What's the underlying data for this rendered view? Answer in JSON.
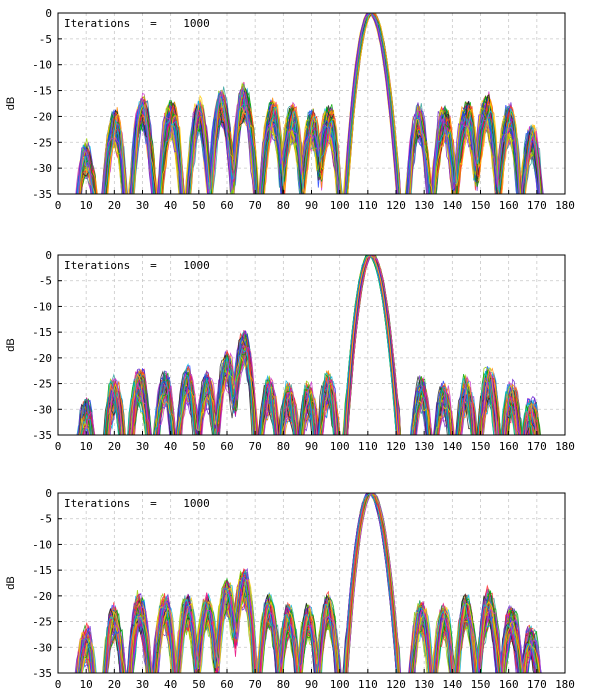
{
  "chart_data": [
    {
      "type": "line",
      "annotation": "Iterations   =    1000",
      "ylabel": "dB",
      "xlabel": "",
      "xlim": [
        0,
        180
      ],
      "ylim": [
        -35,
        0
      ],
      "xticks": [
        "0",
        "10",
        "20",
        "30",
        "40",
        "50",
        "60",
        "70",
        "80",
        "90",
        "100",
        "110",
        "120",
        "130",
        "140",
        "150",
        "160",
        "170",
        "180"
      ],
      "yticks": [
        "0",
        "-5",
        "-10",
        "-15",
        "-20",
        "-25",
        "-30",
        "-35"
      ],
      "grid": true,
      "series_count": 1000,
      "mainlobe_peak": {
        "x": 111,
        "y": 0
      },
      "mainlobe_null_left_x": 102,
      "mainlobe_null_right_x": 121,
      "sidelobes": [
        {
          "x": 10,
          "y": -27
        },
        {
          "x": 20,
          "y": -21
        },
        {
          "x": 30,
          "y": -18
        },
        {
          "x": 40,
          "y": -19
        },
        {
          "x": 50,
          "y": -19
        },
        {
          "x": 58,
          "y": -17
        },
        {
          "x": 66,
          "y": -16
        },
        {
          "x": 76,
          "y": -19
        },
        {
          "x": 83,
          "y": -20
        },
        {
          "x": 90,
          "y": -21
        },
        {
          "x": 96,
          "y": -20
        },
        {
          "x": 128,
          "y": -20
        },
        {
          "x": 137,
          "y": -20
        },
        {
          "x": 145,
          "y": -19
        },
        {
          "x": 152,
          "y": -18
        },
        {
          "x": 160,
          "y": -20
        },
        {
          "x": 168,
          "y": -24
        }
      ]
    },
    {
      "type": "line",
      "annotation": "Iterations   =    1000",
      "ylabel": "dB",
      "xlabel": "",
      "xlim": [
        0,
        180
      ],
      "ylim": [
        -35,
        0
      ],
      "xticks": [
        "0",
        "10",
        "20",
        "30",
        "40",
        "50",
        "60",
        "70",
        "80",
        "90",
        "100",
        "110",
        "120",
        "130",
        "140",
        "150",
        "160",
        "170",
        "180"
      ],
      "yticks": [
        "0",
        "-5",
        "-10",
        "-15",
        "-20",
        "-25",
        "-30",
        "-35"
      ],
      "grid": true,
      "series_count": 1000,
      "mainlobe_peak": {
        "x": 111,
        "y": 0
      },
      "mainlobe_null_left_x": 102,
      "mainlobe_null_right_x": 121,
      "sidelobes": [
        {
          "x": 10,
          "y": -30
        },
        {
          "x": 20,
          "y": -26
        },
        {
          "x": 29,
          "y": -24
        },
        {
          "x": 38,
          "y": -25
        },
        {
          "x": 46,
          "y": -24
        },
        {
          "x": 53,
          "y": -25
        },
        {
          "x": 60,
          "y": -21
        },
        {
          "x": 66,
          "y": -17
        },
        {
          "x": 75,
          "y": -26
        },
        {
          "x": 82,
          "y": -27
        },
        {
          "x": 89,
          "y": -27
        },
        {
          "x": 96,
          "y": -25
        },
        {
          "x": 129,
          "y": -26
        },
        {
          "x": 137,
          "y": -27
        },
        {
          "x": 145,
          "y": -26
        },
        {
          "x": 153,
          "y": -24
        },
        {
          "x": 161,
          "y": -27
        },
        {
          "x": 168,
          "y": -30
        }
      ]
    },
    {
      "type": "line",
      "annotation": "Iterations   =    1000",
      "ylabel": "dB",
      "xlabel": "",
      "xlim": [
        0,
        180
      ],
      "ylim": [
        -35,
        0
      ],
      "xticks": [
        "0",
        "10",
        "20",
        "30",
        "40",
        "50",
        "60",
        "70",
        "80",
        "90",
        "100",
        "110",
        "120",
        "130",
        "140",
        "150",
        "160",
        "170",
        "180"
      ],
      "yticks": [
        "0",
        "-5",
        "-10",
        "-15",
        "-20",
        "-25",
        "-30",
        "-35"
      ],
      "grid": true,
      "series_count": 1000,
      "mainlobe_peak": {
        "x": 111,
        "y": 0
      },
      "mainlobe_null_left_x": 102,
      "mainlobe_null_right_x": 121,
      "sidelobes": [
        {
          "x": 10,
          "y": -28
        },
        {
          "x": 20,
          "y": -24
        },
        {
          "x": 29,
          "y": -22
        },
        {
          "x": 38,
          "y": -22
        },
        {
          "x": 46,
          "y": -22
        },
        {
          "x": 53,
          "y": -22
        },
        {
          "x": 60,
          "y": -19
        },
        {
          "x": 66,
          "y": -17
        },
        {
          "x": 75,
          "y": -22
        },
        {
          "x": 82,
          "y": -24
        },
        {
          "x": 89,
          "y": -24
        },
        {
          "x": 96,
          "y": -22
        },
        {
          "x": 129,
          "y": -23
        },
        {
          "x": 137,
          "y": -24
        },
        {
          "x": 145,
          "y": -22
        },
        {
          "x": 153,
          "y": -21
        },
        {
          "x": 161,
          "y": -24
        },
        {
          "x": 168,
          "y": -28
        }
      ]
    }
  ],
  "palette": [
    "#1f3fff",
    "#ff2a2a",
    "#00a800",
    "#ffcc00",
    "#00b7e6",
    "#cc33cc",
    "#ff8800",
    "#222222",
    "#6a1fd1",
    "#2aa09a",
    "#99cc00",
    "#e6007a"
  ]
}
